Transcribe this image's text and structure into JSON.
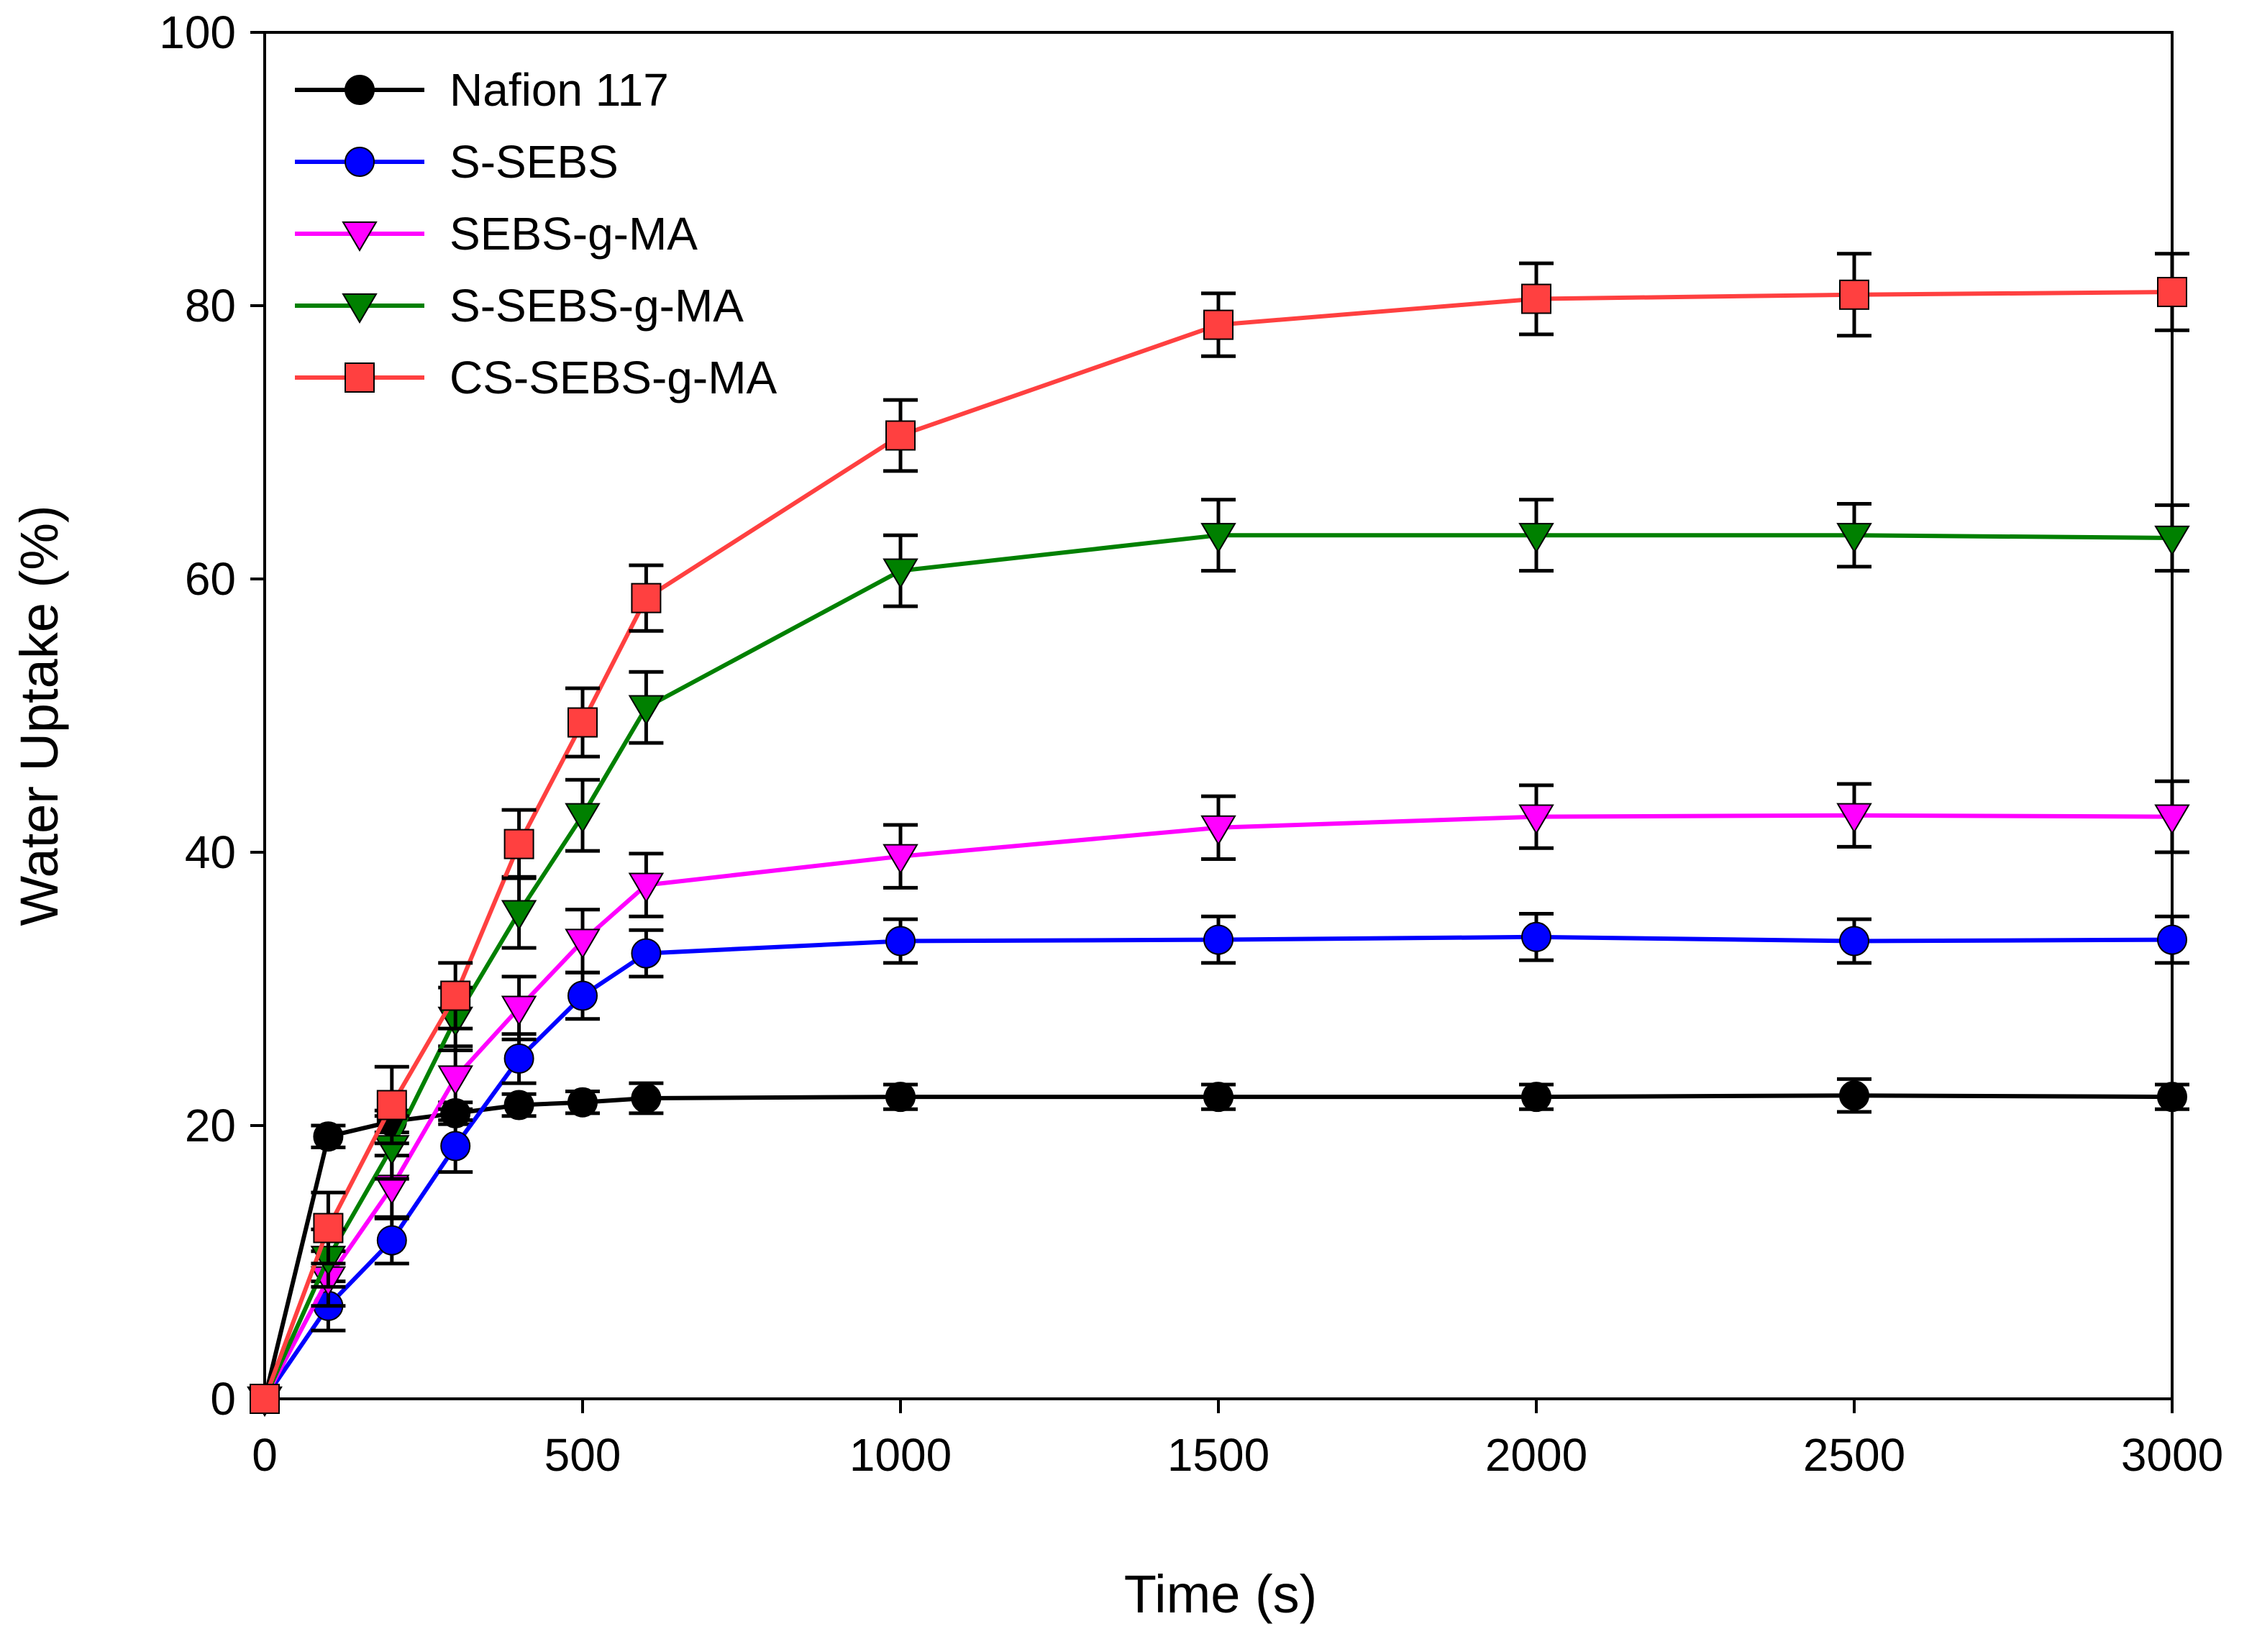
{
  "chart_data": {
    "type": "line",
    "title": "",
    "xlabel": "Time (s)",
    "ylabel": "Water Uptake (%)",
    "xlim": [
      0,
      3000
    ],
    "ylim": [
      0,
      100
    ],
    "xticks": [
      0,
      500,
      1000,
      1500,
      2000,
      2500,
      3000
    ],
    "yticks": [
      0,
      20,
      40,
      60,
      80,
      100
    ],
    "grid": false,
    "legend_position": "top-left",
    "series": [
      {
        "name": "Nafion 117",
        "color": "#000000",
        "marker": "circle",
        "x": [
          0,
          100,
          200,
          300,
          400,
          500,
          600,
          1000,
          1500,
          2000,
          2500,
          3000
        ],
        "y": [
          0,
          19.2,
          20.3,
          20.9,
          21.5,
          21.7,
          22.0,
          22.1,
          22.1,
          22.1,
          22.2,
          22.1
        ],
        "error": [
          0,
          0.8,
          0.8,
          0.8,
          0.8,
          0.8,
          1.1,
          0.9,
          0.9,
          0.9,
          1.2,
          0.9
        ]
      },
      {
        "name": "S-SEBS",
        "color": "#0000ff",
        "marker": "circle",
        "x": [
          0,
          100,
          200,
          300,
          400,
          500,
          600,
          1000,
          1500,
          2000,
          2500,
          3000
        ],
        "y": [
          0,
          6.8,
          11.6,
          18.5,
          24.9,
          29.5,
          32.6,
          33.5,
          33.6,
          33.8,
          33.5,
          33.6
        ],
        "error": [
          0,
          1.8,
          1.7,
          1.9,
          1.8,
          1.7,
          1.7,
          1.6,
          1.7,
          1.7,
          1.6,
          1.7
        ]
      },
      {
        "name": "SEBS-g-MA",
        "color": "#ff00ff",
        "marker": "triangle-down",
        "x": [
          0,
          100,
          200,
          300,
          400,
          500,
          600,
          1000,
          1500,
          2000,
          2500,
          3000
        ],
        "y": [
          0,
          8.8,
          15.5,
          23.5,
          28.6,
          33.5,
          37.6,
          39.7,
          41.8,
          42.6,
          42.7,
          42.6
        ],
        "error": [
          0,
          2.0,
          2.3,
          2.3,
          2.3,
          2.3,
          2.3,
          2.3,
          2.3,
          2.3,
          2.3,
          2.6
        ]
      },
      {
        "name": "S-SEBS-g-MA",
        "color": "#008000",
        "marker": "triangle-down",
        "x": [
          0,
          100,
          200,
          300,
          400,
          500,
          600,
          1000,
          1500,
          2000,
          2500,
          3000
        ],
        "y": [
          0,
          10.3,
          18.4,
          27.8,
          35.6,
          42.7,
          50.6,
          60.6,
          63.2,
          63.2,
          63.2,
          63.0
        ],
        "error": [
          0,
          2.1,
          2.3,
          2.3,
          2.6,
          2.6,
          2.6,
          2.6,
          2.6,
          2.6,
          2.3,
          2.4
        ]
      },
      {
        "name": "CS-SEBS-g-MA",
        "color": "#ff4040",
        "marker": "square",
        "x": [
          0,
          100,
          200,
          300,
          400,
          500,
          600,
          1000,
          1500,
          2000,
          2500,
          3000
        ],
        "y": [
          0,
          12.5,
          21.5,
          29.5,
          40.6,
          49.5,
          58.6,
          70.5,
          78.6,
          80.5,
          80.8,
          81.0
        ],
        "error": [
          0,
          2.6,
          2.8,
          2.4,
          2.5,
          2.5,
          2.4,
          2.6,
          2.3,
          2.6,
          3.0,
          2.8
        ]
      }
    ]
  }
}
